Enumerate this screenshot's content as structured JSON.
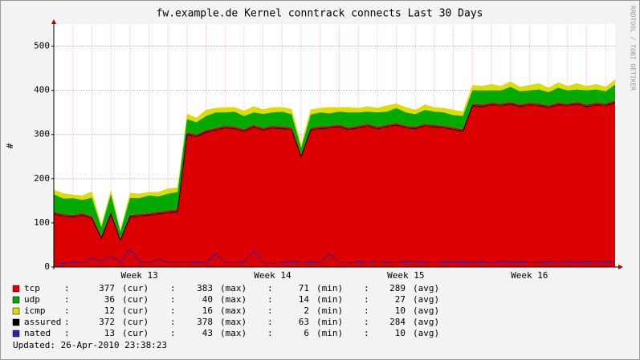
{
  "chart_data": {
    "type": "area",
    "title": "fw.example.de Kernel conntrack connects Last 30 Days",
    "ylabel": "#",
    "credit": "RRDTOOL / TOBI OETIKER",
    "ylim": [
      0,
      550
    ],
    "yticks": [
      0,
      100,
      200,
      300,
      400,
      500
    ],
    "grid": true,
    "categories": [
      null,
      null,
      null,
      null,
      null,
      null,
      null,
      null,
      null,
      "Week 13",
      null,
      null,
      null,
      null,
      null,
      null,
      null,
      null,
      null,
      null,
      null,
      null,
      null,
      "Week 14",
      null,
      null,
      null,
      null,
      null,
      null,
      null,
      null,
      null,
      null,
      null,
      null,
      null,
      "Week 15",
      null,
      null,
      null,
      null,
      null,
      null,
      null,
      null,
      null,
      null,
      null,
      null,
      "Week 16",
      null,
      null,
      null,
      null,
      null,
      null,
      null,
      null,
      null
    ],
    "stat_labels": [
      "(cur)",
      "(max)",
      "(min)",
      "(avg)"
    ],
    "series": [
      {
        "name": "tcp",
        "color": "#dd0000",
        "style": "stack",
        "stats": [
          377,
          383,
          71,
          289
        ],
        "values": [
          125,
          120,
          118,
          122,
          115,
          70,
          125,
          65,
          118,
          120,
          122,
          125,
          128,
          130,
          305,
          300,
          310,
          315,
          320,
          318,
          312,
          322,
          315,
          320,
          318,
          316,
          255,
          315,
          318,
          320,
          322,
          316,
          320,
          324,
          318,
          322,
          326,
          320,
          318,
          324,
          322,
          320,
          316,
          312,
          370,
          368,
          372,
          370,
          374,
          368,
          372,
          370,
          366,
          372,
          370,
          374,
          368,
          372,
          370,
          377
        ]
      },
      {
        "name": "udp",
        "color": "#00aa00",
        "style": "stack",
        "stats": [
          36,
          40,
          14,
          27
        ],
        "values": [
          40,
          35,
          38,
          30,
          42,
          20,
          40,
          15,
          38,
          36,
          40,
          35,
          38,
          40,
          30,
          28,
          32,
          35,
          30,
          34,
          30,
          28,
          32,
          30,
          34,
          30,
          15,
          30,
          32,
          28,
          30,
          34,
          30,
          28,
          32,
          30,
          34,
          30,
          28,
          32,
          30,
          30,
          28,
          30,
          30,
          32,
          28,
          30,
          34,
          30,
          28,
          32,
          30,
          34,
          30,
          28,
          32,
          30,
          28,
          36
        ]
      },
      {
        "name": "icmp",
        "color": "#dddd00",
        "style": "stack",
        "stats": [
          12,
          16,
          2,
          10
        ],
        "values": [
          10,
          12,
          8,
          10,
          14,
          6,
          10,
          4,
          12,
          10,
          8,
          10,
          12,
          10,
          12,
          10,
          14,
          10,
          12,
          10,
          12,
          14,
          10,
          12,
          10,
          12,
          8,
          12,
          10,
          14,
          10,
          12,
          10,
          12,
          10,
          14,
          10,
          12,
          10,
          12,
          10,
          10,
          12,
          10,
          12,
          10,
          14,
          10,
          12,
          10,
          12,
          14,
          10,
          12,
          10,
          14,
          10,
          12,
          10,
          12
        ]
      },
      {
        "name": "assured",
        "color": "#000000",
        "style": "line",
        "stats": [
          372,
          378,
          63,
          284
        ],
        "values": [
          120,
          115,
          113,
          117,
          110,
          65,
          120,
          60,
          113,
          115,
          117,
          120,
          123,
          125,
          300,
          295,
          305,
          310,
          315,
          313,
          307,
          317,
          310,
          315,
          313,
          311,
          250,
          310,
          313,
          315,
          317,
          311,
          315,
          319,
          313,
          317,
          321,
          315,
          313,
          319,
          317,
          315,
          311,
          307,
          365,
          363,
          367,
          365,
          369,
          363,
          367,
          365,
          361,
          367,
          365,
          369,
          363,
          367,
          365,
          372
        ]
      },
      {
        "name": "nated",
        "color": "#2222aa",
        "style": "line",
        "stats": [
          13,
          43,
          6,
          10
        ],
        "values": [
          10,
          8,
          12,
          9,
          20,
          14,
          25,
          10,
          40,
          12,
          9,
          18,
          10,
          11,
          10,
          12,
          9,
          30,
          11,
          10,
          12,
          35,
          10,
          9,
          11,
          13,
          10,
          12,
          10,
          30,
          11,
          9,
          12,
          10,
          14,
          11,
          10,
          12,
          13,
          11,
          10,
          12,
          11,
          12,
          11,
          12,
          10,
          13,
          11,
          12,
          10,
          11,
          12,
          13,
          12,
          11,
          12,
          13,
          12,
          13
        ]
      }
    ],
    "updated": "Updated: 26-Apr-2010 23:38:23"
  }
}
